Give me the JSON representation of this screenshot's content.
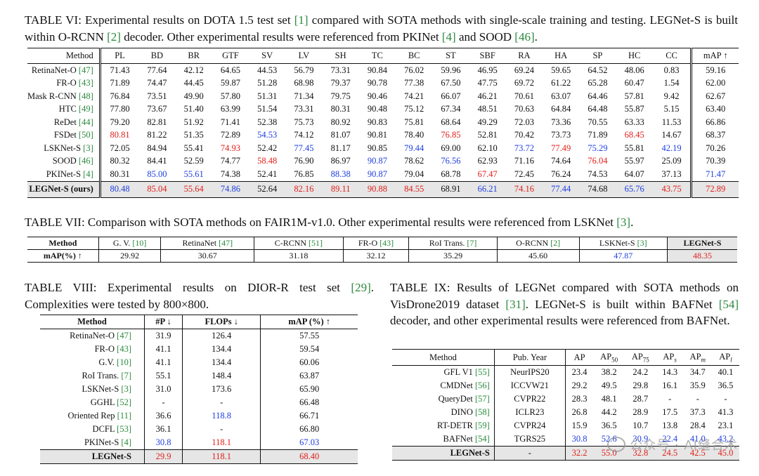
{
  "t6": {
    "caption": [
      "TABLE VI: Experimental results on DOTA 1.5 test set ",
      "[1]",
      " compared with SOTA methods with single-scale training and testing. LEGNet-S is built within O-RCNN ",
      "[2]",
      " decoder. Other experimental results were referenced from PKINet ",
      "[4]",
      " and SOOD ",
      "[46]",
      "."
    ],
    "headers": [
      "Method",
      "PL",
      "BD",
      "BR",
      "GTF",
      "SV",
      "LV",
      "SH",
      "TC",
      "BC",
      "ST",
      "SBF",
      "RA",
      "HA",
      "SP",
      "HC",
      "CC",
      "mAP ↑"
    ],
    "rows": [
      {
        "name": "RetinaNet-O ",
        "cite": "[47]",
        "v": [
          "71.43",
          "77.64",
          "42.12",
          "64.65",
          "44.53",
          "56.79",
          "73.31",
          "90.84",
          "76.02",
          "59.96",
          "46.95",
          "69.24",
          "59.65",
          "64.52",
          "48.06",
          "0.83",
          "59.16"
        ],
        "c": [
          "",
          "",
          "",
          "",
          "",
          "",
          "",
          "",
          "",
          "",
          "",
          "",
          "",
          "",
          "",
          "",
          ""
        ]
      },
      {
        "name": "FR-O ",
        "cite": "[43]",
        "v": [
          "71.89",
          "74.47",
          "44.45",
          "59.87",
          "51.28",
          "68.98",
          "79.37",
          "90.78",
          "77.38",
          "67.50",
          "47.75",
          "69.72",
          "61.22",
          "65.28",
          "60.47",
          "1.54",
          "62.00"
        ],
        "c": [
          "",
          "",
          "",
          "",
          "",
          "",
          "",
          "",
          "",
          "",
          "",
          "",
          "",
          "",
          "",
          "",
          ""
        ]
      },
      {
        "name": "Mask R-CNN ",
        "cite": "[48]",
        "v": [
          "76.84",
          "73.51",
          "49.90",
          "57.80",
          "51.31",
          "71.34",
          "79.75",
          "90.46",
          "74.21",
          "66.07",
          "46.21",
          "70.61",
          "63.07",
          "64.46",
          "57.81",
          "9.42",
          "62.67"
        ],
        "c": [
          "",
          "",
          "",
          "",
          "",
          "",
          "",
          "",
          "",
          "",
          "",
          "",
          "",
          "",
          "",
          "",
          ""
        ]
      },
      {
        "name": "HTC ",
        "cite": "[49]",
        "v": [
          "77.80",
          "73.67",
          "51.40",
          "63.99",
          "51.54",
          "73.31",
          "80.31",
          "90.48",
          "75.12",
          "67.34",
          "48.51",
          "70.63",
          "64.84",
          "64.48",
          "55.87",
          "5.15",
          "63.40"
        ],
        "c": [
          "",
          "",
          "",
          "",
          "",
          "",
          "",
          "",
          "",
          "",
          "",
          "",
          "",
          "",
          "",
          "",
          ""
        ]
      },
      {
        "name": "ReDet ",
        "cite": "[44]",
        "v": [
          "79.20",
          "82.81",
          "51.92",
          "71.41",
          "52.38",
          "75.73",
          "80.92",
          "90.83",
          "75.81",
          "68.64",
          "49.29",
          "72.03",
          "73.36",
          "70.55",
          "63.33",
          "11.53",
          "66.86"
        ],
        "c": [
          "",
          "",
          "",
          "",
          "",
          "",
          "",
          "",
          "",
          "",
          "",
          "",
          "",
          "",
          "",
          "",
          ""
        ]
      },
      {
        "name": "FSDet ",
        "cite": "[50]",
        "v": [
          "80.81",
          "81.22",
          "51.35",
          "72.89",
          "54.53",
          "74.12",
          "81.07",
          "90.81",
          "78.40",
          "76.85",
          "52.81",
          "70.42",
          "73.73",
          "71.89",
          "68.45",
          "14.67",
          "68.37"
        ],
        "c": [
          "r",
          "",
          "",
          "",
          "b",
          "",
          "",
          "",
          "",
          "r",
          "",
          "",
          "",
          "",
          "r",
          "",
          ""
        ]
      },
      {
        "name": "LSKNet-S ",
        "cite": "[3]",
        "v": [
          "72.05",
          "84.94",
          "55.41",
          "74.93",
          "52.42",
          "77.45",
          "81.17",
          "90.85",
          "79.44",
          "69.00",
          "62.10",
          "73.72",
          "77.49",
          "75.29",
          "55.81",
          "42.19",
          "70.26"
        ],
        "c": [
          "",
          "",
          "",
          "r",
          "",
          "b",
          "",
          "",
          "b",
          "",
          "",
          "b",
          "r",
          "b",
          "",
          "b",
          ""
        ]
      },
      {
        "name": "SOOD ",
        "cite": "[46]",
        "v": [
          "80.32",
          "84.41",
          "52.59",
          "74.77",
          "58.48",
          "76.90",
          "86.97",
          "90.87",
          "78.62",
          "76.56",
          "62.93",
          "71.16",
          "74.64",
          "76.04",
          "55.97",
          "25.09",
          "70.39"
        ],
        "c": [
          "",
          "",
          "",
          "",
          "r",
          "",
          "",
          "b",
          "",
          "b",
          "",
          "",
          "",
          "r",
          "",
          "",
          ""
        ]
      },
      {
        "name": "PKINet-S ",
        "cite": "[4]",
        "v": [
          "80.31",
          "85.00",
          "55.61",
          "74.38",
          "52.41",
          "76.85",
          "88.38",
          "90.87",
          "79.04",
          "68.78",
          "67.47",
          "72.45",
          "76.24",
          "74.53",
          "64.07",
          "37.13",
          "71.47"
        ],
        "c": [
          "",
          "b",
          "b",
          "",
          "",
          "",
          "b",
          "b",
          "",
          "",
          "r",
          "",
          "",
          "",
          "",
          "",
          "b"
        ]
      }
    ],
    "ours": {
      "name": "LEGNet-S (ours)",
      "v": [
        "80.48",
        "85.04",
        "55.64",
        "74.86",
        "52.64",
        "82.16",
        "89.11",
        "90.88",
        "84.55",
        "68.91",
        "66.21",
        "74.16",
        "77.44",
        "74.68",
        "65.76",
        "43.75",
        "72.89"
      ],
      "c": [
        "b",
        "r",
        "r",
        "b",
        "",
        "r",
        "r",
        "r",
        "r",
        "",
        "b",
        "r",
        "b",
        "",
        "b",
        "r",
        "r"
      ]
    }
  },
  "t7": {
    "caption": [
      "TABLE VII: Comparison with SOTA methods on FAIR1M-v1.0. Other experimental results were referenced from LSKNet ",
      "[3]",
      "."
    ],
    "headers": [
      {
        "t": "Method",
        "cite": ""
      },
      {
        "t": "G. V. ",
        "cite": "[10]"
      },
      {
        "t": "RetinaNet ",
        "cite": "[47]"
      },
      {
        "t": "C-RCNN ",
        "cite": "[51]"
      },
      {
        "t": "FR-O ",
        "cite": "[43]"
      },
      {
        "t": "RoI Trans. ",
        "cite": "[7]"
      },
      {
        "t": "O-RCNN ",
        "cite": "[2]"
      },
      {
        "t": "LSKNet-S ",
        "cite": "[3]"
      },
      {
        "t": "LEGNet-S",
        "cite": ""
      }
    ],
    "row_label": "mAP(%) ↑",
    "values": [
      "29.92",
      "30.67",
      "31.18",
      "32.12",
      "35.29",
      "45.60",
      "47.87",
      "48.35"
    ],
    "colors": [
      "",
      "",
      "",
      "",
      "",
      "",
      "b",
      "r"
    ]
  },
  "t8": {
    "caption": [
      "TABLE VIII: Experimental results on DIOR-R test set ",
      "[29]",
      ". Complexities were tested by 800×800."
    ],
    "headers": [
      "Method",
      "#P ↓",
      "FLOPs ↓",
      "mAP (%) ↑"
    ],
    "rows": [
      {
        "name": "RetinaNet-O ",
        "cite": "[47]",
        "v": [
          "31.9",
          "126.4",
          "57.55"
        ],
        "c": [
          "",
          "",
          ""
        ]
      },
      {
        "name": "FR-O ",
        "cite": "[43]",
        "v": [
          "41.1",
          "134.4",
          "59.54"
        ],
        "c": [
          "",
          "",
          ""
        ]
      },
      {
        "name": "G.V. ",
        "cite": "[10]",
        "v": [
          "41.1",
          "134.4",
          "60.06"
        ],
        "c": [
          "",
          "",
          ""
        ]
      },
      {
        "name": "RoI Trans. ",
        "cite": "[7]",
        "v": [
          "55.1",
          "148.4",
          "63.87"
        ],
        "c": [
          "",
          "",
          ""
        ]
      },
      {
        "name": "LSKNet-S ",
        "cite": "[3]",
        "v": [
          "31.0",
          "173.6",
          "65.90"
        ],
        "c": [
          "",
          "",
          ""
        ]
      },
      {
        "name": "GGHL ",
        "cite": "[52]",
        "v": [
          "-",
          "-",
          "66.48"
        ],
        "c": [
          "",
          "",
          ""
        ]
      },
      {
        "name": "Oriented Rep ",
        "cite": "[11]",
        "v": [
          "36.6",
          "118.8",
          "66.71"
        ],
        "c": [
          "",
          "b",
          ""
        ]
      },
      {
        "name": "DCFL ",
        "cite": "[53]",
        "v": [
          "36.1",
          "-",
          "66.80"
        ],
        "c": [
          "",
          "",
          ""
        ]
      },
      {
        "name": "PKINet-S ",
        "cite": "[4]",
        "v": [
          "30.8",
          "118.1",
          "67.03"
        ],
        "c": [
          "b",
          "r",
          "b"
        ]
      }
    ],
    "ours": {
      "name": "LEGNet-S",
      "v": [
        "29.9",
        "118.1",
        "68.40"
      ],
      "c": [
        "r",
        "r",
        "r"
      ]
    }
  },
  "t9": {
    "caption": [
      "TABLE IX: Results of LEGNet compared with SOTA methods on VisDrone2019 dataset ",
      "[31]",
      ". LEGNet-S is built within BAFNet ",
      "[54]",
      " decoder, and other experimental results were referenced from BAFNet."
    ],
    "headers": [
      {
        "t": "Method",
        "sub": ""
      },
      {
        "t": "Pub. Year",
        "sub": ""
      },
      {
        "t": "AP",
        "sub": ""
      },
      {
        "t": "AP",
        "sub": "50"
      },
      {
        "t": "AP",
        "sub": "75"
      },
      {
        "t": "AP",
        "sub": "s"
      },
      {
        "t": "AP",
        "sub": "m"
      },
      {
        "t": "AP",
        "sub": "l"
      }
    ],
    "rows": [
      {
        "name": "GFL V1 ",
        "cite": "[55]",
        "pub": "NeurIPS20",
        "v": [
          "23.4",
          "38.2",
          "24.2",
          "14.3",
          "34.7",
          "40.1"
        ],
        "c": [
          "",
          "",
          "",
          "",
          "",
          ""
        ]
      },
      {
        "name": "CMDNet ",
        "cite": "[56]",
        "pub": "ICCVW21",
        "v": [
          "29.2",
          "49.5",
          "29.8",
          "16.1",
          "35.9",
          "36.5"
        ],
        "c": [
          "",
          "",
          "",
          "",
          "",
          ""
        ]
      },
      {
        "name": "QueryDet ",
        "cite": "[57]",
        "pub": "CVPR22",
        "v": [
          "28.3",
          "48.1",
          "28.7",
          "-",
          "-",
          "-"
        ],
        "c": [
          "",
          "",
          "",
          "",
          "",
          ""
        ]
      },
      {
        "name": "DINO ",
        "cite": "[58]",
        "pub": "ICLR23",
        "v": [
          "26.8",
          "44.2",
          "28.9",
          "17.5",
          "37.3",
          "41.3"
        ],
        "c": [
          "",
          "",
          "",
          "",
          "",
          ""
        ]
      },
      {
        "name": "RT-DETR ",
        "cite": "[59]",
        "pub": "CVPR24",
        "v": [
          "15.9",
          "36.5",
          "10.7",
          "13.8",
          "28.4",
          "23.1"
        ],
        "c": [
          "",
          "",
          "",
          "",
          "",
          ""
        ]
      },
      {
        "name": "BAFNet ",
        "cite": "[54]",
        "pub": "TGRS25",
        "v": [
          "30.8",
          "52.6",
          "30.9",
          "22.4",
          "41.0",
          "43.2"
        ],
        "c": [
          "b",
          "b",
          "b",
          "b",
          "b",
          "b"
        ]
      }
    ],
    "ours": {
      "name": "LEGNet-S",
      "pub": "-",
      "v": [
        "32.2",
        "55.0",
        "32.8",
        "24.5",
        "42.5",
        "45.0"
      ],
      "c": [
        "r",
        "r",
        "r",
        "r",
        "r",
        "r"
      ]
    }
  },
  "watermark": "公众号 · AI缝合术"
}
